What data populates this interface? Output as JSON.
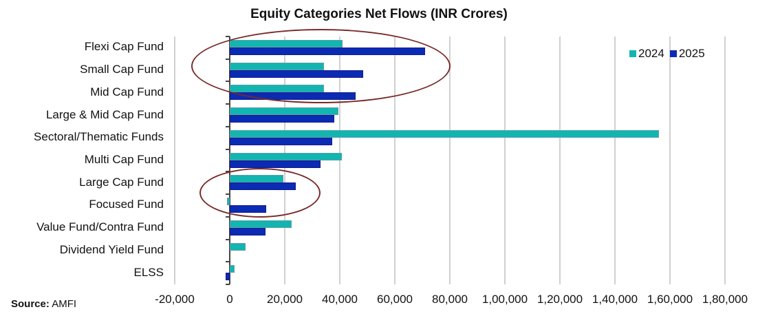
{
  "chart_data": {
    "type": "bar",
    "orientation": "horizontal",
    "title": "Equity Categories Net Flows (INR Crores)",
    "xlabel": "",
    "ylabel": "",
    "xlim": [
      -20000,
      180000
    ],
    "x_ticks": [
      -20000,
      0,
      20000,
      40000,
      60000,
      80000,
      100000,
      120000,
      140000,
      160000,
      180000
    ],
    "x_tick_labels": [
      "-20,000",
      "0",
      "20,000",
      "40,000",
      "60,000",
      "80,000",
      "1,00,000",
      "1,20,000",
      "1,40,000",
      "1,60,000",
      "1,80,000"
    ],
    "grid": "vertical",
    "legend_position": "top-right",
    "categories": [
      "Flexi Cap Fund",
      "Small Cap Fund",
      "Mid Cap Fund",
      "Large & Mid Cap Fund",
      "Sectoral/Thematic Funds",
      "Multi Cap Fund",
      "Large Cap Fund",
      "Focused Fund",
      "Value Fund/Contra Fund",
      "Dividend Yield Fund",
      "ELSS"
    ],
    "series": [
      {
        "name": "2024",
        "color": "#12b5b0",
        "values": [
          41000,
          34300,
          34300,
          39500,
          156000,
          40700,
          19500,
          -1000,
          22600,
          5700,
          1700
        ]
      },
      {
        "name": "2025",
        "color": "#0a2bb4",
        "values": [
          71000,
          48500,
          45800,
          38000,
          37200,
          33000,
          24000,
          13300,
          12900,
          0,
          -1400
        ]
      }
    ],
    "annotations": [
      {
        "type": "ellipse",
        "highlights": [
          "Flexi Cap Fund",
          "Small Cap Fund",
          "Mid Cap Fund"
        ]
      },
      {
        "type": "ellipse",
        "highlights": [
          "Large Cap Fund",
          "Focused Fund"
        ]
      }
    ]
  },
  "source": {
    "label": "Source:",
    "value": "AMFI"
  }
}
